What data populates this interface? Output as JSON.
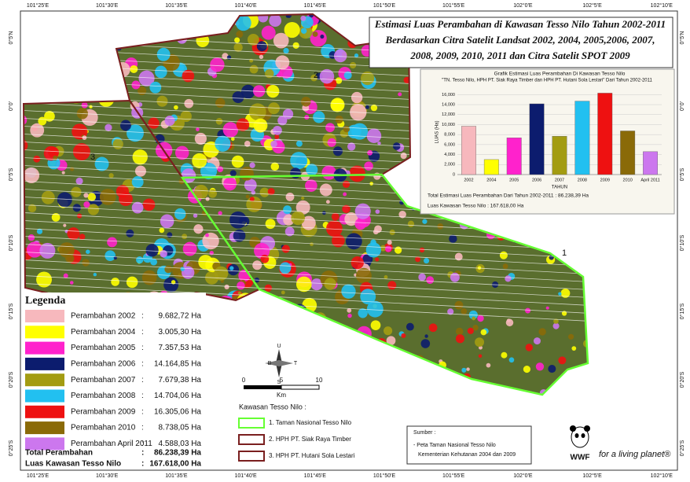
{
  "title_lines": [
    "Estimasi Luas Perambahan di Kawasan Tesso Nilo Tahun 2002-2011",
    "Berdasarkan Citra Satelit Landsat 2002, 2004, 2005,2006, 2007,",
    "2008, 2009, 2010, 2011 dan Citra Satelit SPOT 2009"
  ],
  "longitudes": [
    "101°25'E",
    "101°30'E",
    "101°35'E",
    "101°40'E",
    "101°45'E",
    "101°50'E",
    "101°55'E",
    "102°0'E",
    "102°5'E",
    "102°10'E"
  ],
  "latitudes": [
    "0°5'N",
    "0°0'",
    "0°5'S",
    "0°10'S",
    "0°15'S",
    "0°20'S",
    "0°25'S"
  ],
  "map_labels": [
    "1",
    "2",
    "3"
  ],
  "legend": {
    "title": "Legenda",
    "separator": ":",
    "items": [
      {
        "name": "Perambahan 2002",
        "area": "9.682,72 Ha",
        "color": "#f7b8bd"
      },
      {
        "name": "Perambahan 2004",
        "area": "3.005,30 Ha",
        "color": "#ffff00"
      },
      {
        "name": "Perambahan 2005",
        "area": "7.357,53 Ha",
        "color": "#ff22cc"
      },
      {
        "name": "Perambahan 2006",
        "area": "14.164,85 Ha",
        "color": "#0c1c6e"
      },
      {
        "name": "Perambahan 2007",
        "area": "7.679,38 Ha",
        "color": "#a39c12"
      },
      {
        "name": "Perambahan 2008",
        "area": "14.704,06 Ha",
        "color": "#22c0f0"
      },
      {
        "name": "Perambahan 2009",
        "area": "16.305,06 Ha",
        "color": "#ee1111"
      },
      {
        "name": "Perambahan 2010",
        "area": "8.738,05 Ha",
        "color": "#8a6a08"
      },
      {
        "name": "Perambahan April 2011",
        "area": "4.588,03 Ha",
        "color": "#cc77ee"
      }
    ],
    "totals": [
      {
        "name": "Total Perambahan",
        "area": "86.238,39 Ha"
      },
      {
        "name": "Luas Kawasan Tesso Nilo",
        "area": "167.618,00 Ha"
      }
    ]
  },
  "scale": {
    "labels": [
      "0",
      "5",
      "10"
    ],
    "unit": "Km"
  },
  "compass": {
    "n": "U",
    "w": "B",
    "e": "T",
    "s": "S"
  },
  "kawasan": {
    "title": "Kawasan Tesso Nilo :",
    "items": [
      {
        "name": "1. Taman Nasional Tesso Nilo",
        "color": "#66ff33"
      },
      {
        "name": "2. HPH PT. Siak Raya Timber",
        "color": "#7a1f1f"
      },
      {
        "name": "3. HPH PT. Hutani Sola Lestari",
        "color": "#7a1f1f"
      }
    ]
  },
  "source": {
    "title": "Sumber :",
    "lines": [
      "- Peta Taman Nasional Tesso Nilo",
      "Kementerian Kehutanan 2004 dan 2009"
    ]
  },
  "logo": {
    "name": "WWF",
    "tagline": "for a living planet®"
  },
  "chart_data": {
    "type": "bar",
    "title": "Grafik Estimasi Luas Perambahan Di Kawasan Tesso Nilo",
    "subtitle": "\"TN. Tesso Nilo, HPH PT. Siak Raya Timber dan HPH PT. Hutani Sola Lestari\" Dari Tahun 2002-2011",
    "y_label": "LUAS (Ha)",
    "x_label": "TAHUN",
    "categories": [
      "2002",
      "2004",
      "2005",
      "2006",
      "2007",
      "2008",
      "2009",
      "2010",
      "April 2011"
    ],
    "values": [
      9682.72,
      3005.3,
      7357.53,
      14164.85,
      7679.38,
      14704.06,
      16305.06,
      8738.05,
      4588.03
    ],
    "colors": [
      "#f7b8bd",
      "#ffff00",
      "#ff22cc",
      "#0c1c6e",
      "#a39c12",
      "#22c0f0",
      "#ee1111",
      "#8a6a08",
      "#cc77ee"
    ],
    "ylim": [
      0,
      17000
    ],
    "yticks": [
      0,
      {
        "value": 2000,
        "label": "2,000"
      },
      {
        "value": 4000,
        "label": "4,000"
      },
      {
        "value": 6000,
        "label": "6,000"
      },
      {
        "value": 8000,
        "label": "8,000"
      },
      {
        "value": 10000,
        "label": "10,000"
      },
      {
        "value": 12000,
        "label": "12,000"
      },
      {
        "value": 14000,
        "label": "14,000"
      },
      {
        "value": 16000,
        "label": "16,000"
      }
    ],
    "grid": true,
    "notes": [
      "Total Estimasi Luas Perambahan Dari Tahun 2002-2011 : 86.238,39 Ha",
      "Luas Kawasan Tesso Nilo : 167.618,00 Ha"
    ]
  }
}
